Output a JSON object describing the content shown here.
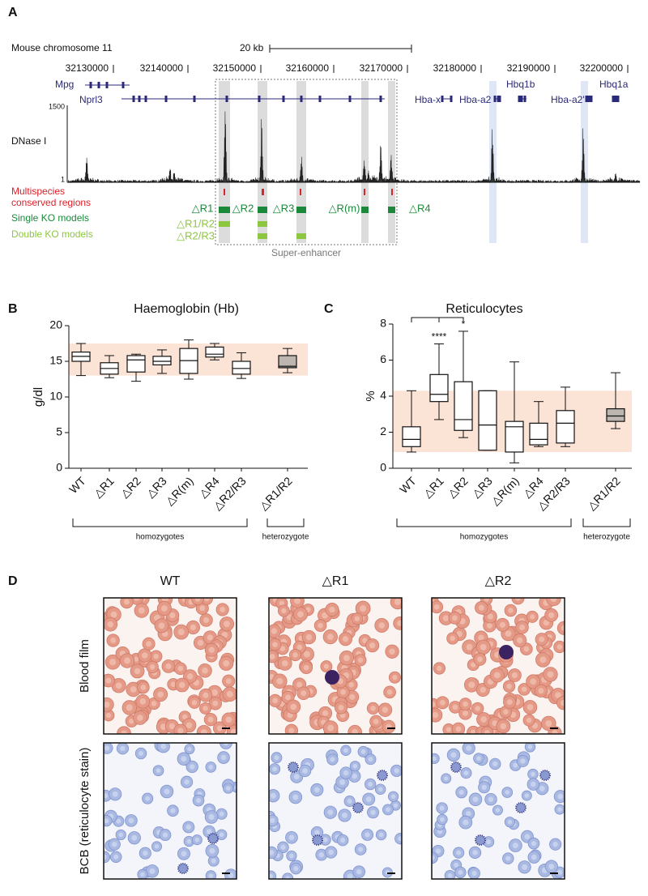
{
  "panel_labels": [
    "A",
    "B",
    "C",
    "D"
  ],
  "genome": {
    "chromosome": "Mouse chromosome 11",
    "scale": "20 kb",
    "coordinates": [
      "32130000",
      "32140000",
      "32150000",
      "32160000",
      "32170000",
      "32180000",
      "32190000",
      "32200000"
    ],
    "genes": [
      "Mpg",
      "Nprl3",
      "Hba-x",
      "Hba-a2",
      "Hbq1b",
      "Hba-a2'",
      "Hbq1a"
    ],
    "track": "DNase I",
    "track_max": "1500",
    "track_min": "1",
    "legend": [
      "Multispecies",
      "conserved regions",
      "Single KO models",
      "Double KO models"
    ],
    "single_ko": [
      "△R1",
      "△R2",
      "△R3",
      "△R(m)",
      "△R4"
    ],
    "double_ko": [
      "△R1/R2",
      "△R2/R3"
    ],
    "super_enhancer": "Super-enhancer"
  },
  "chart_data": [
    {
      "type": "box",
      "title": "Haemoglobin (Hb)",
      "y_label": "g/dl",
      "categories": [
        "WT",
        "△R1",
        "△R2",
        "△R3",
        "△R(m)",
        "△R4",
        "△R2/R3",
        "△R1/R2"
      ],
      "boxes": [
        {
          "min": 13,
          "q1": 15,
          "median": 15.7,
          "q3": 16.3,
          "max": 17.5
        },
        {
          "min": 12.7,
          "q1": 13.2,
          "median": 14,
          "q3": 14.8,
          "max": 15.8
        },
        {
          "min": 12.2,
          "q1": 13.5,
          "median": 15.2,
          "q3": 15.8,
          "max": 16
        },
        {
          "min": 13.3,
          "q1": 14.5,
          "median": 15,
          "q3": 15.7,
          "max": 16.6
        },
        {
          "min": 12.5,
          "q1": 13.3,
          "median": 15.1,
          "q3": 16.8,
          "max": 18
        },
        {
          "min": 15.2,
          "q1": 15.6,
          "median": 16,
          "q3": 17,
          "max": 17.5
        },
        {
          "min": 12.6,
          "q1": 13.2,
          "median": 14,
          "q3": 15,
          "max": 16.2
        },
        {
          "min": 13.4,
          "q1": 14.1,
          "median": 14.3,
          "q3": 15.8,
          "max": 16.8
        }
      ],
      "box_colors": [
        "#ffffff",
        "#ffffff",
        "#ffffff",
        "#ffffff",
        "#ffffff",
        "#ffffff",
        "#ffffff",
        "#bdb6b0"
      ],
      "reference_range": [
        13,
        17.5
      ],
      "reference_color": "#fbe3d6",
      "groups": [
        "homozygotes",
        "heterozygote"
      ],
      "ylim": [
        0,
        20
      ],
      "yticks": [
        0,
        5,
        10,
        15,
        20
      ],
      "annotations": []
    },
    {
      "type": "box",
      "title": "Reticulocytes",
      "y_label": "%",
      "categories": [
        "WT",
        "△R1",
        "△R2",
        "△R3",
        "△R(m)",
        "△R4",
        "△R2/R3",
        "△R1/R2"
      ],
      "boxes": [
        {
          "min": 0.9,
          "q1": 1.2,
          "median": 1.6,
          "q3": 2.3,
          "max": 4.3
        },
        {
          "min": 2.7,
          "q1": 3.7,
          "median": 4.1,
          "q3": 5.2,
          "max": 6.9
        },
        {
          "min": 1.7,
          "q1": 2.1,
          "median": 2.7,
          "q3": 4.8,
          "max": 7.6
        },
        {
          "min": 1,
          "q1": 1,
          "median": 2.4,
          "q3": 4.3,
          "max": 4.3
        },
        {
          "min": 0.3,
          "q1": 0.9,
          "median": 2.3,
          "q3": 2.6,
          "max": 5.9
        },
        {
          "min": 1.2,
          "q1": 1.3,
          "median": 1.6,
          "q3": 2.5,
          "max": 3.7
        },
        {
          "min": 1.2,
          "q1": 1.4,
          "median": 2.5,
          "q3": 3.2,
          "max": 4.5
        },
        {
          "min": 2.2,
          "q1": 2.6,
          "median": 2.9,
          "q3": 3.3,
          "max": 5.3
        }
      ],
      "box_colors": [
        "#ffffff",
        "#ffffff",
        "#ffffff",
        "#ffffff",
        "#ffffff",
        "#ffffff",
        "#ffffff",
        "#bdb6b0"
      ],
      "reference_range": [
        0.9,
        4.3
      ],
      "reference_color": "#fbe3d6",
      "groups": [
        "homozygotes",
        "heterozygote"
      ],
      "ylim": [
        0,
        8
      ],
      "yticks": [
        0,
        2,
        4,
        6,
        8
      ],
      "annotations": [
        {
          "text": "****",
          "category": "△R1"
        },
        {
          "text": "*",
          "category": "△R2"
        }
      ]
    }
  ],
  "panel_d": {
    "columns": [
      "WT",
      "△R1",
      "△R2"
    ],
    "rows": [
      "Blood film",
      "BCB (reticulocyte stain)"
    ]
  }
}
